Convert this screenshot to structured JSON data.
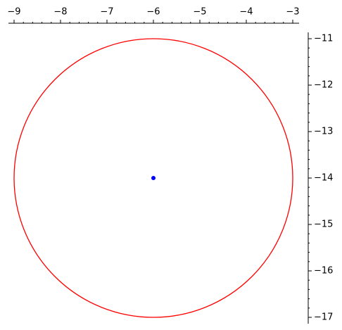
{
  "chart_data": {
    "type": "scatter",
    "title": "",
    "xlabel": "",
    "ylabel": "",
    "xlim": [
      -9,
      -3
    ],
    "ylim": [
      -17,
      -11
    ],
    "x_axis_position": "top",
    "y_axis_position": "right",
    "grid": false,
    "legend": "none",
    "x_ticks": [
      "−9",
      "−8",
      "−7",
      "−6",
      "−5",
      "−4",
      "−3"
    ],
    "y_ticks": [
      "−11",
      "−12",
      "−13",
      "−14",
      "−15",
      "−16",
      "−17"
    ],
    "x_tick_values": [
      -9,
      -8,
      -7,
      -6,
      -5,
      -4,
      -3
    ],
    "y_tick_values": [
      -11,
      -12,
      -13,
      -14,
      -15,
      -16,
      -17
    ],
    "minor_tick_step": 0.2,
    "circle": {
      "type": "circle",
      "center": [
        -6,
        -14
      ],
      "radius": 3,
      "color": "#ff0000"
    },
    "point": {
      "type": "point",
      "x": -6,
      "y": -14,
      "color": "#0000ff"
    }
  }
}
